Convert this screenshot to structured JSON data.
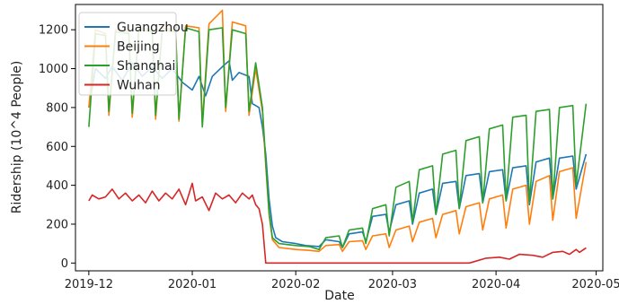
{
  "chart_data": {
    "type": "line",
    "title": "",
    "xlabel": "Date",
    "ylabel": "Ridership (10^4 People)",
    "x_ticks": [
      "2019-12",
      "2020-01",
      "2020-02",
      "2020-03",
      "2020-04",
      "2020-05"
    ],
    "y_ticks": [
      "0",
      "200",
      "400",
      "600",
      "800",
      "1000",
      "1200"
    ],
    "ylim": [
      -40,
      1330
    ],
    "xlim": [
      "2019-11-27",
      "2020-05-03"
    ],
    "grid": false,
    "legend_position": "top-left",
    "series": [
      {
        "name": "Guangzhou",
        "color": "#1f77b4",
        "points": [
          [
            "2019-12-01",
            800
          ],
          [
            "2019-12-03",
            1000
          ],
          [
            "2019-12-06",
            950
          ],
          [
            "2019-12-08",
            1010
          ],
          [
            "2019-12-11",
            940
          ],
          [
            "2019-12-14",
            1030
          ],
          [
            "2019-12-17",
            960
          ],
          [
            "2019-12-20",
            1010
          ],
          [
            "2019-12-23",
            950
          ],
          [
            "2019-12-26",
            1000
          ],
          [
            "2019-12-29",
            930
          ],
          [
            "2020-01-01",
            890
          ],
          [
            "2020-01-03",
            960
          ],
          [
            "2020-01-05",
            860
          ],
          [
            "2020-01-07",
            960
          ],
          [
            "2020-01-10",
            1010
          ],
          [
            "2020-01-12",
            1040
          ],
          [
            "2020-01-13",
            940
          ],
          [
            "2020-01-15",
            980
          ],
          [
            "2020-01-18",
            960
          ],
          [
            "2020-01-19",
            820
          ],
          [
            "2020-01-21",
            800
          ],
          [
            "2020-01-22",
            700
          ],
          [
            "2020-01-23",
            560
          ],
          [
            "2020-01-24",
            330
          ],
          [
            "2020-01-25",
            190
          ],
          [
            "2020-01-26",
            130
          ],
          [
            "2020-01-28",
            110
          ],
          [
            "2020-02-01",
            100
          ],
          [
            "2020-02-04",
            90
          ],
          [
            "2020-02-08",
            85
          ],
          [
            "2020-02-10",
            120
          ],
          [
            "2020-02-14",
            110
          ],
          [
            "2020-02-15",
            80
          ],
          [
            "2020-02-17",
            150
          ],
          [
            "2020-02-21",
            160
          ],
          [
            "2020-02-22",
            110
          ],
          [
            "2020-02-24",
            240
          ],
          [
            "2020-02-28",
            250
          ],
          [
            "2020-02-29",
            160
          ],
          [
            "2020-03-02",
            300
          ],
          [
            "2020-03-06",
            320
          ],
          [
            "2020-03-07",
            200
          ],
          [
            "2020-03-09",
            360
          ],
          [
            "2020-03-13",
            380
          ],
          [
            "2020-03-14",
            250
          ],
          [
            "2020-03-16",
            410
          ],
          [
            "2020-03-20",
            420
          ],
          [
            "2020-03-21",
            280
          ],
          [
            "2020-03-23",
            450
          ],
          [
            "2020-03-27",
            460
          ],
          [
            "2020-03-28",
            310
          ],
          [
            "2020-03-30",
            470
          ],
          [
            "2020-04-03",
            480
          ],
          [
            "2020-04-04",
            320
          ],
          [
            "2020-04-06",
            490
          ],
          [
            "2020-04-10",
            500
          ],
          [
            "2020-04-11",
            300
          ],
          [
            "2020-04-13",
            520
          ],
          [
            "2020-04-17",
            540
          ],
          [
            "2020-04-18",
            330
          ],
          [
            "2020-04-20",
            540
          ],
          [
            "2020-04-24",
            550
          ],
          [
            "2020-04-25",
            380
          ],
          [
            "2020-04-28",
            560
          ]
        ]
      },
      {
        "name": "Beijing",
        "color": "#ff7f0e",
        "points": [
          [
            "2019-12-01",
            800
          ],
          [
            "2019-12-03",
            1200
          ],
          [
            "2019-12-06",
            1180
          ],
          [
            "2019-12-07",
            760
          ],
          [
            "2019-12-09",
            1200
          ],
          [
            "2019-12-13",
            1190
          ],
          [
            "2019-12-14",
            750
          ],
          [
            "2019-12-16",
            1210
          ],
          [
            "2019-12-20",
            1200
          ],
          [
            "2019-12-21",
            740
          ],
          [
            "2019-12-23",
            1210
          ],
          [
            "2019-12-27",
            1200
          ],
          [
            "2019-12-28",
            730
          ],
          [
            "2019-12-30",
            1220
          ],
          [
            "2020-01-03",
            1210
          ],
          [
            "2020-01-04",
            720
          ],
          [
            "2020-01-06",
            1230
          ],
          [
            "2020-01-10",
            1300
          ],
          [
            "2020-01-11",
            780
          ],
          [
            "2020-01-13",
            1240
          ],
          [
            "2020-01-17",
            1220
          ],
          [
            "2020-01-18",
            760
          ],
          [
            "2020-01-20",
            1000
          ],
          [
            "2020-01-22",
            780
          ],
          [
            "2020-01-23",
            500
          ],
          [
            "2020-01-24",
            250
          ],
          [
            "2020-01-25",
            120
          ],
          [
            "2020-01-27",
            80
          ],
          [
            "2020-02-01",
            70
          ],
          [
            "2020-02-05",
            65
          ],
          [
            "2020-02-08",
            60
          ],
          [
            "2020-02-10",
            90
          ],
          [
            "2020-02-14",
            95
          ],
          [
            "2020-02-15",
            60
          ],
          [
            "2020-02-17",
            110
          ],
          [
            "2020-02-21",
            115
          ],
          [
            "2020-02-22",
            70
          ],
          [
            "2020-02-24",
            140
          ],
          [
            "2020-02-28",
            150
          ],
          [
            "2020-02-29",
            80
          ],
          [
            "2020-03-02",
            170
          ],
          [
            "2020-03-06",
            190
          ],
          [
            "2020-03-07",
            110
          ],
          [
            "2020-03-09",
            210
          ],
          [
            "2020-03-13",
            230
          ],
          [
            "2020-03-14",
            130
          ],
          [
            "2020-03-16",
            250
          ],
          [
            "2020-03-20",
            270
          ],
          [
            "2020-03-21",
            150
          ],
          [
            "2020-03-23",
            290
          ],
          [
            "2020-03-27",
            310
          ],
          [
            "2020-03-28",
            170
          ],
          [
            "2020-03-30",
            330
          ],
          [
            "2020-04-03",
            350
          ],
          [
            "2020-04-04",
            180
          ],
          [
            "2020-04-06",
            380
          ],
          [
            "2020-04-10",
            400
          ],
          [
            "2020-04-11",
            200
          ],
          [
            "2020-04-13",
            420
          ],
          [
            "2020-04-17",
            450
          ],
          [
            "2020-04-18",
            220
          ],
          [
            "2020-04-20",
            470
          ],
          [
            "2020-04-24",
            490
          ],
          [
            "2020-04-25",
            230
          ],
          [
            "2020-04-28",
            520
          ]
        ]
      },
      {
        "name": "Shanghai",
        "color": "#2ca02c",
        "points": [
          [
            "2019-12-01",
            700
          ],
          [
            "2019-12-03",
            1180
          ],
          [
            "2019-12-06",
            1170
          ],
          [
            "2019-12-07",
            780
          ],
          [
            "2019-12-09",
            1190
          ],
          [
            "2019-12-13",
            1180
          ],
          [
            "2019-12-14",
            770
          ],
          [
            "2019-12-16",
            1200
          ],
          [
            "2019-12-20",
            1190
          ],
          [
            "2019-12-21",
            760
          ],
          [
            "2019-12-23",
            1200
          ],
          [
            "2019-12-27",
            1190
          ],
          [
            "2019-12-28",
            740
          ],
          [
            "2019-12-30",
            1210
          ],
          [
            "2020-01-03",
            1190
          ],
          [
            "2020-01-04",
            700
          ],
          [
            "2020-01-06",
            1200
          ],
          [
            "2020-01-10",
            1210
          ],
          [
            "2020-01-11",
            800
          ],
          [
            "2020-01-13",
            1200
          ],
          [
            "2020-01-17",
            1180
          ],
          [
            "2020-01-18",
            780
          ],
          [
            "2020-01-20",
            1030
          ],
          [
            "2020-01-22",
            800
          ],
          [
            "2020-01-23",
            520
          ],
          [
            "2020-01-24",
            260
          ],
          [
            "2020-01-25",
            130
          ],
          [
            "2020-01-27",
            100
          ],
          [
            "2020-02-01",
            90
          ],
          [
            "2020-02-05",
            85
          ],
          [
            "2020-02-08",
            70
          ],
          [
            "2020-02-10",
            130
          ],
          [
            "2020-02-14",
            140
          ],
          [
            "2020-02-15",
            80
          ],
          [
            "2020-02-17",
            170
          ],
          [
            "2020-02-21",
            180
          ],
          [
            "2020-02-22",
            100
          ],
          [
            "2020-02-24",
            280
          ],
          [
            "2020-02-28",
            300
          ],
          [
            "2020-02-29",
            140
          ],
          [
            "2020-03-02",
            390
          ],
          [
            "2020-03-06",
            420
          ],
          [
            "2020-03-07",
            210
          ],
          [
            "2020-03-09",
            480
          ],
          [
            "2020-03-13",
            500
          ],
          [
            "2020-03-14",
            250
          ],
          [
            "2020-03-16",
            560
          ],
          [
            "2020-03-20",
            580
          ],
          [
            "2020-03-21",
            280
          ],
          [
            "2020-03-23",
            630
          ],
          [
            "2020-03-27",
            650
          ],
          [
            "2020-03-28",
            310
          ],
          [
            "2020-03-30",
            690
          ],
          [
            "2020-04-03",
            710
          ],
          [
            "2020-04-04",
            320
          ],
          [
            "2020-04-06",
            750
          ],
          [
            "2020-04-10",
            760
          ],
          [
            "2020-04-11",
            310
          ],
          [
            "2020-04-13",
            780
          ],
          [
            "2020-04-17",
            790
          ],
          [
            "2020-04-18",
            330
          ],
          [
            "2020-04-20",
            800
          ],
          [
            "2020-04-24",
            810
          ],
          [
            "2020-04-25",
            400
          ],
          [
            "2020-04-28",
            820
          ]
        ]
      },
      {
        "name": "Wuhan",
        "color": "#d62728",
        "points": [
          [
            "2019-12-01",
            320
          ],
          [
            "2019-12-02",
            350
          ],
          [
            "2019-12-04",
            330
          ],
          [
            "2019-12-06",
            340
          ],
          [
            "2019-12-08",
            380
          ],
          [
            "2019-12-10",
            330
          ],
          [
            "2019-12-12",
            360
          ],
          [
            "2019-12-14",
            320
          ],
          [
            "2019-12-16",
            350
          ],
          [
            "2019-12-18",
            310
          ],
          [
            "2019-12-20",
            370
          ],
          [
            "2019-12-22",
            320
          ],
          [
            "2019-12-24",
            360
          ],
          [
            "2019-12-26",
            330
          ],
          [
            "2019-12-28",
            380
          ],
          [
            "2019-12-30",
            300
          ],
          [
            "2020-01-01",
            410
          ],
          [
            "2020-01-02",
            320
          ],
          [
            "2020-01-04",
            340
          ],
          [
            "2020-01-06",
            270
          ],
          [
            "2020-01-08",
            360
          ],
          [
            "2020-01-10",
            330
          ],
          [
            "2020-01-12",
            350
          ],
          [
            "2020-01-14",
            310
          ],
          [
            "2020-01-16",
            360
          ],
          [
            "2020-01-18",
            330
          ],
          [
            "2020-01-19",
            350
          ],
          [
            "2020-01-20",
            300
          ],
          [
            "2020-01-21",
            280
          ],
          [
            "2020-01-22",
            200
          ],
          [
            "2020-01-23",
            0
          ],
          [
            "2020-02-15",
            0
          ],
          [
            "2020-03-15",
            0
          ],
          [
            "2020-03-24",
            0
          ],
          [
            "2020-03-26",
            10
          ],
          [
            "2020-03-29",
            25
          ],
          [
            "2020-04-02",
            30
          ],
          [
            "2020-04-05",
            20
          ],
          [
            "2020-04-08",
            45
          ],
          [
            "2020-04-12",
            40
          ],
          [
            "2020-04-15",
            30
          ],
          [
            "2020-04-18",
            55
          ],
          [
            "2020-04-21",
            60
          ],
          [
            "2020-04-23",
            45
          ],
          [
            "2020-04-25",
            70
          ],
          [
            "2020-04-26",
            55
          ],
          [
            "2020-04-28",
            78
          ]
        ]
      }
    ]
  }
}
